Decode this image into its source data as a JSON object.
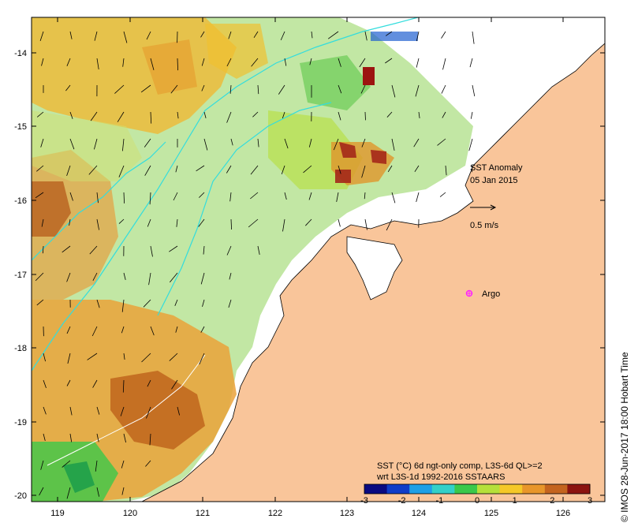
{
  "map": {
    "title": "SST Anomaly",
    "date": "05 Jan 2015",
    "vector_scale_label": "0.5 m/s",
    "argo_label": "Argo",
    "colors": {
      "land": "#f9c59a",
      "argo_marker": "#ff22ff",
      "contour": "#33dddd",
      "vector": "#000000"
    },
    "x_axis": {
      "ticks": [
        "119",
        "120",
        "121",
        "122",
        "123",
        "124",
        "125",
        "126"
      ]
    },
    "y_axis": {
      "ticks": [
        "-14",
        "-15",
        "-16",
        "-17",
        "-18",
        "-19",
        "-20"
      ]
    },
    "colorbar": {
      "title_line1": "SST (°C) 6d ngt-only comp, L3S-6d QL>=2",
      "title_line2": "wrt L3S-1d 1992-2016 SSTAARS",
      "ticks": [
        "-3",
        "-2",
        "-1",
        "0",
        "1",
        "2",
        "3"
      ],
      "colors": [
        "#0a0a80",
        "#0f3cc8",
        "#1fa0e6",
        "#34d0c8",
        "#3bc84a",
        "#b6e03a",
        "#f5c828",
        "#e8962a",
        "#c4641e",
        "#8c1410"
      ]
    },
    "credit": "© IMOS 28-Jun-2017 18:00 Hobart Time"
  }
}
